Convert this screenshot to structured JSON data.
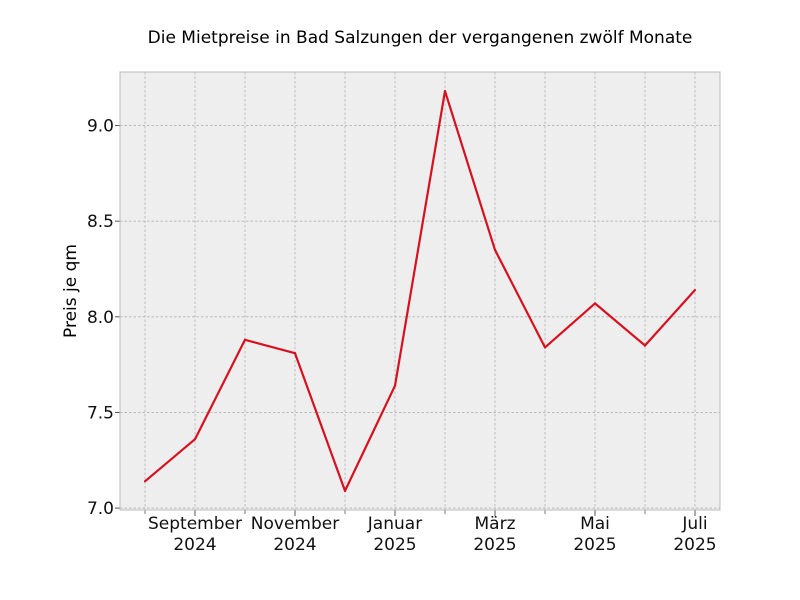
{
  "chart_data": {
    "type": "line",
    "title": "Die Mietpreise in Bad Salzungen der vergangenen zwölf Monate",
    "xlabel": "",
    "ylabel": "Preis je qm",
    "x": [
      "2024-08",
      "2024-09",
      "2024-10",
      "2024-11",
      "2024-12",
      "2025-01",
      "2025-02",
      "2025-03",
      "2025-04",
      "2025-05",
      "2025-06",
      "2025-07"
    ],
    "series": [
      {
        "values": [
          7.14,
          7.36,
          7.88,
          7.81,
          7.09,
          7.64,
          9.18,
          8.35,
          7.84,
          8.07,
          7.85,
          8.14
        ]
      }
    ],
    "ylim": [
      6.99,
      9.28
    ],
    "yticks": [
      "7.0",
      "7.5",
      "8.0",
      "8.5",
      "9.0"
    ],
    "xtick_labels": [
      {
        "month": "2024-09",
        "line1": "September",
        "line2": "2024"
      },
      {
        "month": "2024-11",
        "line1": "November",
        "line2": "2024"
      },
      {
        "month": "2025-01",
        "line1": "Januar",
        "line2": "2025"
      },
      {
        "month": "2025-03",
        "line1": "März",
        "line2": "2025"
      },
      {
        "month": "2025-05",
        "line1": "Mai",
        "line2": "2025"
      },
      {
        "month": "2025-07",
        "line1": "Juli",
        "line2": "2025"
      }
    ],
    "grid": true,
    "line_color": "#d7111f",
    "background_color": "#eeeeee"
  }
}
